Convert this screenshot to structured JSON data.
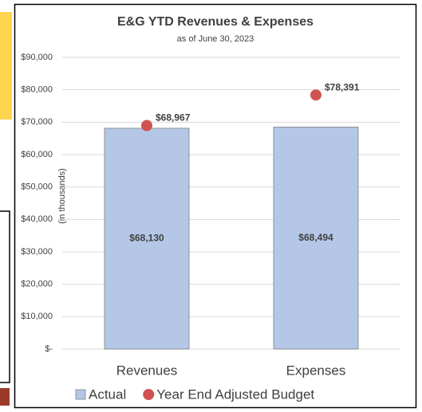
{
  "chart_data": {
    "type": "bar",
    "title": "E&G YTD Revenues & Expenses",
    "subtitle": "as of June 30, 2023",
    "y_label": "(in thousands)",
    "categories": [
      "Revenues",
      "Expenses"
    ],
    "series": [
      {
        "name": "Actual",
        "type": "bar",
        "color": "#b4c7e7",
        "values": [
          68130,
          68494
        ],
        "value_labels": [
          "$68,130",
          "$68,494"
        ]
      },
      {
        "name": "Year End Adjusted Budget",
        "type": "scatter",
        "color": "#cf5350",
        "values": [
          68967,
          78391
        ],
        "value_labels": [
          "$68,967",
          "$78,391"
        ]
      }
    ],
    "ylim": [
      0,
      90000
    ],
    "yticks": [
      {
        "value": 0,
        "label": "$-"
      },
      {
        "value": 10000,
        "label": "$10,000"
      },
      {
        "value": 20000,
        "label": "$20,000"
      },
      {
        "value": 30000,
        "label": "$30,000"
      },
      {
        "value": 40000,
        "label": "$40,000"
      },
      {
        "value": 50000,
        "label": "$50,000"
      },
      {
        "value": 60000,
        "label": "$60,000"
      },
      {
        "value": 70000,
        "label": "$70,000"
      },
      {
        "value": 80000,
        "label": "$80,000"
      },
      {
        "value": 90000,
        "label": "$90,000"
      }
    ],
    "grid": true,
    "legend": "bottom"
  }
}
